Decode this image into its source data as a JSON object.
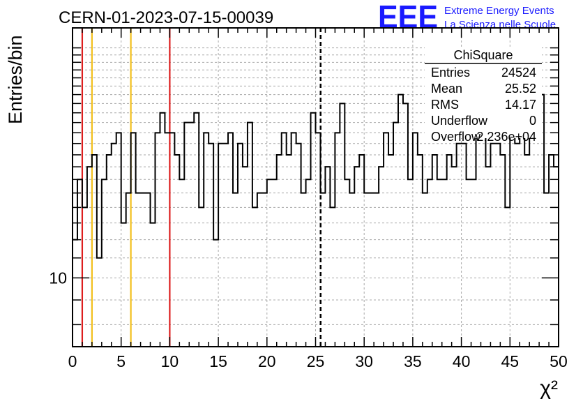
{
  "header": {
    "run_title": "CERN-01-2023-07-15-00039",
    "logo_letters": "EEE",
    "logo_line1": "Extreme Energy Events",
    "logo_line2": "La Scienza nelle Scuole"
  },
  "stats_box": {
    "title": "ChiSquare",
    "rows": [
      {
        "label": "Entries",
        "value": "24524"
      },
      {
        "label": "Mean",
        "value": "25.52"
      },
      {
        "label": "RMS",
        "value": "14.17"
      },
      {
        "label": "Underflow",
        "value": "0"
      },
      {
        "label": "Overflow",
        "value": "2.236e+04"
      }
    ]
  },
  "colors": {
    "red_line": "#dd1e1e",
    "yellow_line": "#f2c01e",
    "logo_blue": "#1a1aff",
    "histogram": "#000000",
    "grid": "#a8a8a8"
  },
  "chart_data": {
    "type": "histogram",
    "xlabel": "χ²",
    "ylabel": "Entries/bin",
    "xlim": [
      0,
      50
    ],
    "y_scale": "log",
    "ylim": [
      7.2,
      33
    ],
    "x_tick_labels": [
      "0",
      "5",
      "10",
      "15",
      "20",
      "25",
      "30",
      "35",
      "40",
      "45",
      "50"
    ],
    "y_tick_labels": [
      "10"
    ],
    "grid": true,
    "bin_width": 0.5,
    "bin_counts": [
      12,
      16,
      14,
      17,
      18,
      11,
      16,
      18,
      19,
      20,
      13,
      15,
      20,
      15,
      15,
      15,
      13,
      20,
      22,
      20,
      20,
      18,
      16,
      21,
      21,
      22,
      14,
      20,
      19,
      12,
      19,
      19,
      20,
      15,
      19,
      17,
      21,
      14,
      15,
      15,
      16,
      16,
      18,
      20,
      18,
      20,
      19,
      15,
      16,
      22,
      20,
      15,
      17,
      14,
      20,
      23,
      16,
      15,
      17,
      18,
      15,
      15,
      15,
      17,
      20,
      18,
      21,
      24,
      23,
      16,
      20,
      18,
      15,
      16,
      18,
      16,
      16,
      18,
      17,
      19,
      19,
      16,
      16,
      20,
      20,
      17,
      19,
      19,
      18,
      14,
      20,
      19,
      22,
      18,
      22,
      20,
      24,
      15,
      18,
      17
    ],
    "vertical_lines": [
      {
        "x": 1,
        "color": "red",
        "style": "solid"
      },
      {
        "x": 2,
        "color": "yellow",
        "style": "solid"
      },
      {
        "x": 6,
        "color": "yellow",
        "style": "solid"
      },
      {
        "x": 10,
        "color": "red",
        "style": "solid"
      },
      {
        "x": 25.52,
        "color": "black",
        "style": "dashed"
      }
    ]
  }
}
